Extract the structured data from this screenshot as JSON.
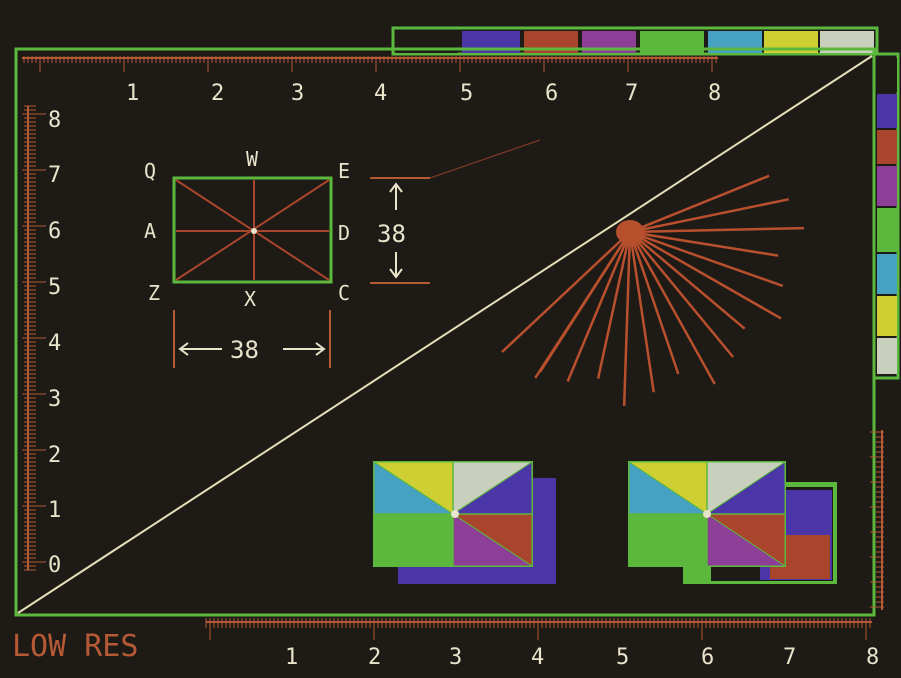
{
  "colors": {
    "background": "#1e1b17",
    "frame": "#5cb83c",
    "ruler": "#b65a35",
    "label": "#e8e4cc",
    "diagonal": "#e4dfb8",
    "ray": "#b9502d",
    "palette": [
      "#1e1b17",
      "#4a36a6",
      "#a9452c",
      "#8d3f97",
      "#5cb83c",
      "#47a1c2",
      "#cfcf34",
      "#c9cfbd"
    ]
  },
  "mode_label": "LOW RES",
  "top_ruler": {
    "ticks": [
      "1",
      "2",
      "3",
      "4",
      "5",
      "6",
      "7",
      "8"
    ]
  },
  "bottom_ruler": {
    "ticks": [
      "1",
      "2",
      "3",
      "4",
      "5",
      "6",
      "7",
      "8"
    ]
  },
  "left_ruler": {
    "ticks": [
      "8",
      "7",
      "6",
      "5",
      "4",
      "3",
      "2",
      "1",
      "0"
    ]
  },
  "box": {
    "corner_labels": {
      "Q": "Q",
      "W": "W",
      "E": "E",
      "A": "A",
      "D": "D",
      "Z": "Z",
      "X": "X",
      "C": "C"
    },
    "height_value": "38",
    "width_value": "38"
  },
  "palette_swatches_top": [
    "black",
    "indigo",
    "rust",
    "purple",
    "green",
    "green",
    "sky",
    "yellow",
    "silver"
  ],
  "palette_swatches_right": [
    "black",
    "indigo",
    "rust",
    "purple",
    "green",
    "green",
    "sky",
    "yellow",
    "silver"
  ],
  "sunburst": {
    "ray_count": 15
  },
  "pinwheel_left": {
    "colors": [
      "#cfcf34",
      "#c9cfbd",
      "#47a1c2",
      "#5cb83c",
      "#4a36a6",
      "#a9452c",
      "#8d3f97",
      "#a9452c"
    ]
  },
  "pinwheel_right": {
    "colors": [
      "#cfcf34",
      "#c9cfbd",
      "#47a1c2",
      "#5cb83c",
      "#4a36a6",
      "#a9452c",
      "#8d3f97",
      "#a9452c"
    ]
  }
}
